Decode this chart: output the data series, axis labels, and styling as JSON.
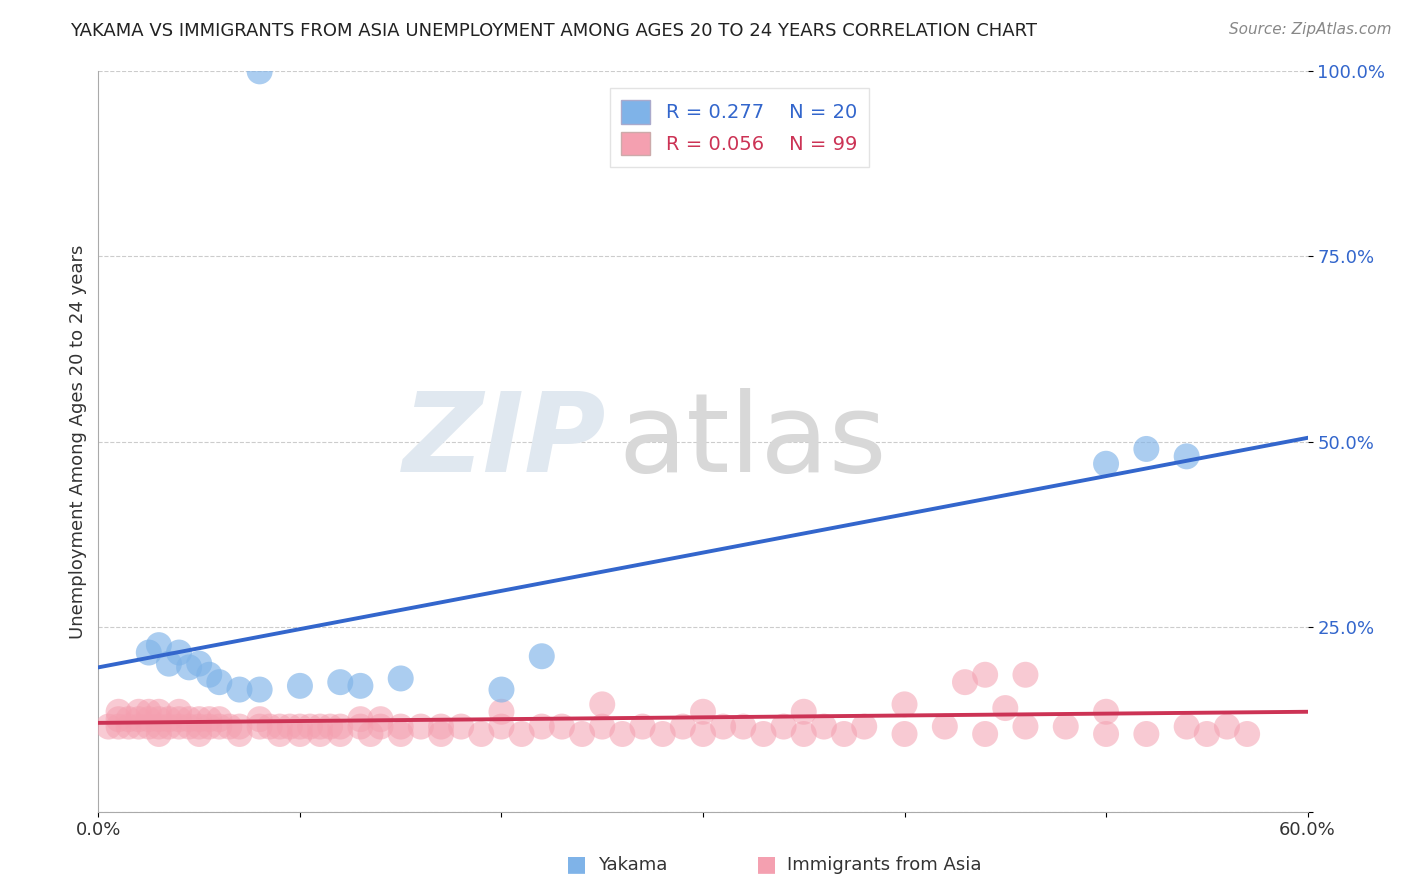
{
  "title": "YAKAMA VS IMMIGRANTS FROM ASIA UNEMPLOYMENT AMONG AGES 20 TO 24 YEARS CORRELATION CHART",
  "source": "Source: ZipAtlas.com",
  "ylabel": "Unemployment Among Ages 20 to 24 years",
  "xlim": [
    0.0,
    0.6
  ],
  "ylim": [
    0.0,
    1.0
  ],
  "x_ticks": [
    0.0,
    0.1,
    0.2,
    0.3,
    0.4,
    0.5,
    0.6
  ],
  "x_tick_labels": [
    "0.0%",
    "",
    "",
    "",
    "",
    "",
    "60.0%"
  ],
  "y_ticks": [
    0.0,
    0.25,
    0.5,
    0.75,
    1.0
  ],
  "y_tick_labels": [
    "",
    "25.0%",
    "50.0%",
    "75.0%",
    "100.0%"
  ],
  "yakama_R": 0.277,
  "yakama_N": 20,
  "asia_R": 0.056,
  "asia_N": 99,
  "yakama_color": "#7fb3e8",
  "yakama_line_color": "#3366cc",
  "asia_color": "#f4a0b0",
  "asia_line_color": "#cc3355",
  "background_color": "#ffffff",
  "grid_color": "#cccccc",
  "yakama_line_x0": 0.0,
  "yakama_line_y0": 0.195,
  "yakama_line_x1": 0.6,
  "yakama_line_y1": 0.505,
  "asia_line_x0": 0.0,
  "asia_line_y0": 0.12,
  "asia_line_x1": 0.6,
  "asia_line_y1": 0.135,
  "yakama_scatter_x": [
    0.025,
    0.03,
    0.035,
    0.04,
    0.045,
    0.05,
    0.055,
    0.06,
    0.07,
    0.08,
    0.13,
    0.15,
    0.2,
    0.22,
    0.5,
    0.52,
    0.54,
    0.1,
    0.12,
    0.08
  ],
  "yakama_scatter_y": [
    0.215,
    0.225,
    0.2,
    0.215,
    0.195,
    0.2,
    0.185,
    0.175,
    0.165,
    0.165,
    0.17,
    0.18,
    0.165,
    0.21,
    0.47,
    0.49,
    0.48,
    0.17,
    0.175,
    1.0
  ],
  "asia_scatter_x": [
    0.005,
    0.01,
    0.01,
    0.01,
    0.015,
    0.015,
    0.02,
    0.02,
    0.02,
    0.025,
    0.025,
    0.025,
    0.03,
    0.03,
    0.03,
    0.03,
    0.035,
    0.035,
    0.04,
    0.04,
    0.04,
    0.045,
    0.045,
    0.05,
    0.05,
    0.05,
    0.055,
    0.055,
    0.06,
    0.06,
    0.065,
    0.07,
    0.07,
    0.08,
    0.08,
    0.085,
    0.09,
    0.09,
    0.095,
    0.1,
    0.1,
    0.105,
    0.11,
    0.11,
    0.115,
    0.12,
    0.12,
    0.13,
    0.13,
    0.135,
    0.14,
    0.14,
    0.15,
    0.15,
    0.16,
    0.17,
    0.17,
    0.18,
    0.19,
    0.2,
    0.21,
    0.22,
    0.23,
    0.24,
    0.25,
    0.26,
    0.27,
    0.28,
    0.29,
    0.3,
    0.31,
    0.32,
    0.33,
    0.34,
    0.35,
    0.36,
    0.37,
    0.38,
    0.4,
    0.42,
    0.44,
    0.46,
    0.48,
    0.5,
    0.5,
    0.52,
    0.54,
    0.55,
    0.56,
    0.57,
    0.43,
    0.44,
    0.46,
    0.2,
    0.25,
    0.3,
    0.35,
    0.4,
    0.45
  ],
  "asia_scatter_y": [
    0.115,
    0.115,
    0.125,
    0.135,
    0.115,
    0.125,
    0.115,
    0.125,
    0.135,
    0.115,
    0.125,
    0.135,
    0.115,
    0.125,
    0.135,
    0.105,
    0.115,
    0.125,
    0.115,
    0.125,
    0.135,
    0.115,
    0.125,
    0.105,
    0.115,
    0.125,
    0.115,
    0.125,
    0.115,
    0.125,
    0.115,
    0.105,
    0.115,
    0.115,
    0.125,
    0.115,
    0.105,
    0.115,
    0.115,
    0.105,
    0.115,
    0.115,
    0.105,
    0.115,
    0.115,
    0.105,
    0.115,
    0.115,
    0.125,
    0.105,
    0.115,
    0.125,
    0.105,
    0.115,
    0.115,
    0.105,
    0.115,
    0.115,
    0.105,
    0.115,
    0.105,
    0.115,
    0.115,
    0.105,
    0.115,
    0.105,
    0.115,
    0.105,
    0.115,
    0.105,
    0.115,
    0.115,
    0.105,
    0.115,
    0.105,
    0.115,
    0.105,
    0.115,
    0.105,
    0.115,
    0.105,
    0.115,
    0.115,
    0.105,
    0.135,
    0.105,
    0.115,
    0.105,
    0.115,
    0.105,
    0.175,
    0.185,
    0.185,
    0.135,
    0.145,
    0.135,
    0.135,
    0.145,
    0.14
  ]
}
